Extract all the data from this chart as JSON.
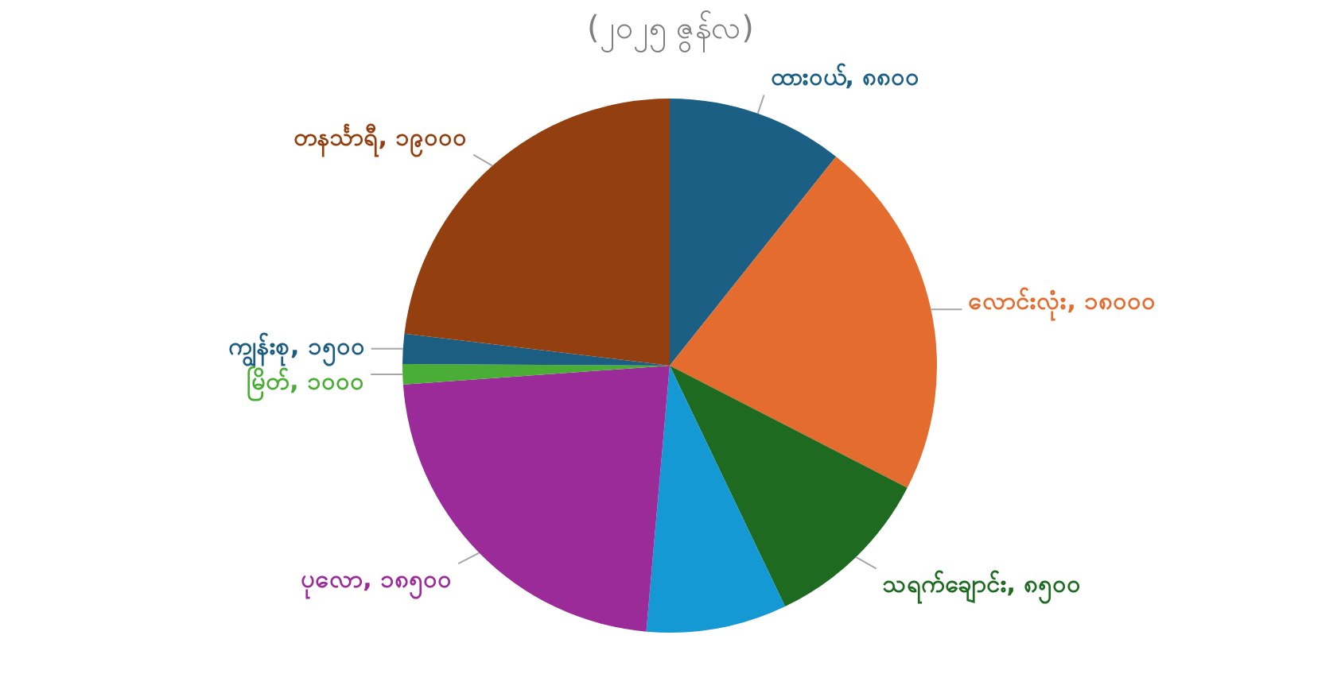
{
  "chart_data": {
    "type": "pie",
    "title": "(၂၀၂၅ ဇွန်လ)",
    "categories": [
      "ထားဝယ်",
      "လောင်းလုံး",
      "သရက်ချောင်း",
      null,
      "ပုလော",
      "မြိတ်",
      "ကျွန်းစု",
      "တနင်္သာရီ"
    ],
    "values": [
      8800,
      18000,
      8500,
      7000,
      18500,
      1000,
      1500,
      19000
    ],
    "colors": [
      "#1c5f84",
      "#e46c2e",
      "#1d6a20",
      "#1499d4",
      "#9b2b98",
      "#49ad36",
      "#1b5e82",
      "#943f10"
    ],
    "value_labels": [
      "၈၈၀၀",
      "၁၈၀၀၀",
      "၈၅၀၀",
      null,
      "၁၈၅၀၀",
      "၁၀၀၀",
      "၁၅၀၀",
      "၁၉၀၀၀"
    ]
  }
}
